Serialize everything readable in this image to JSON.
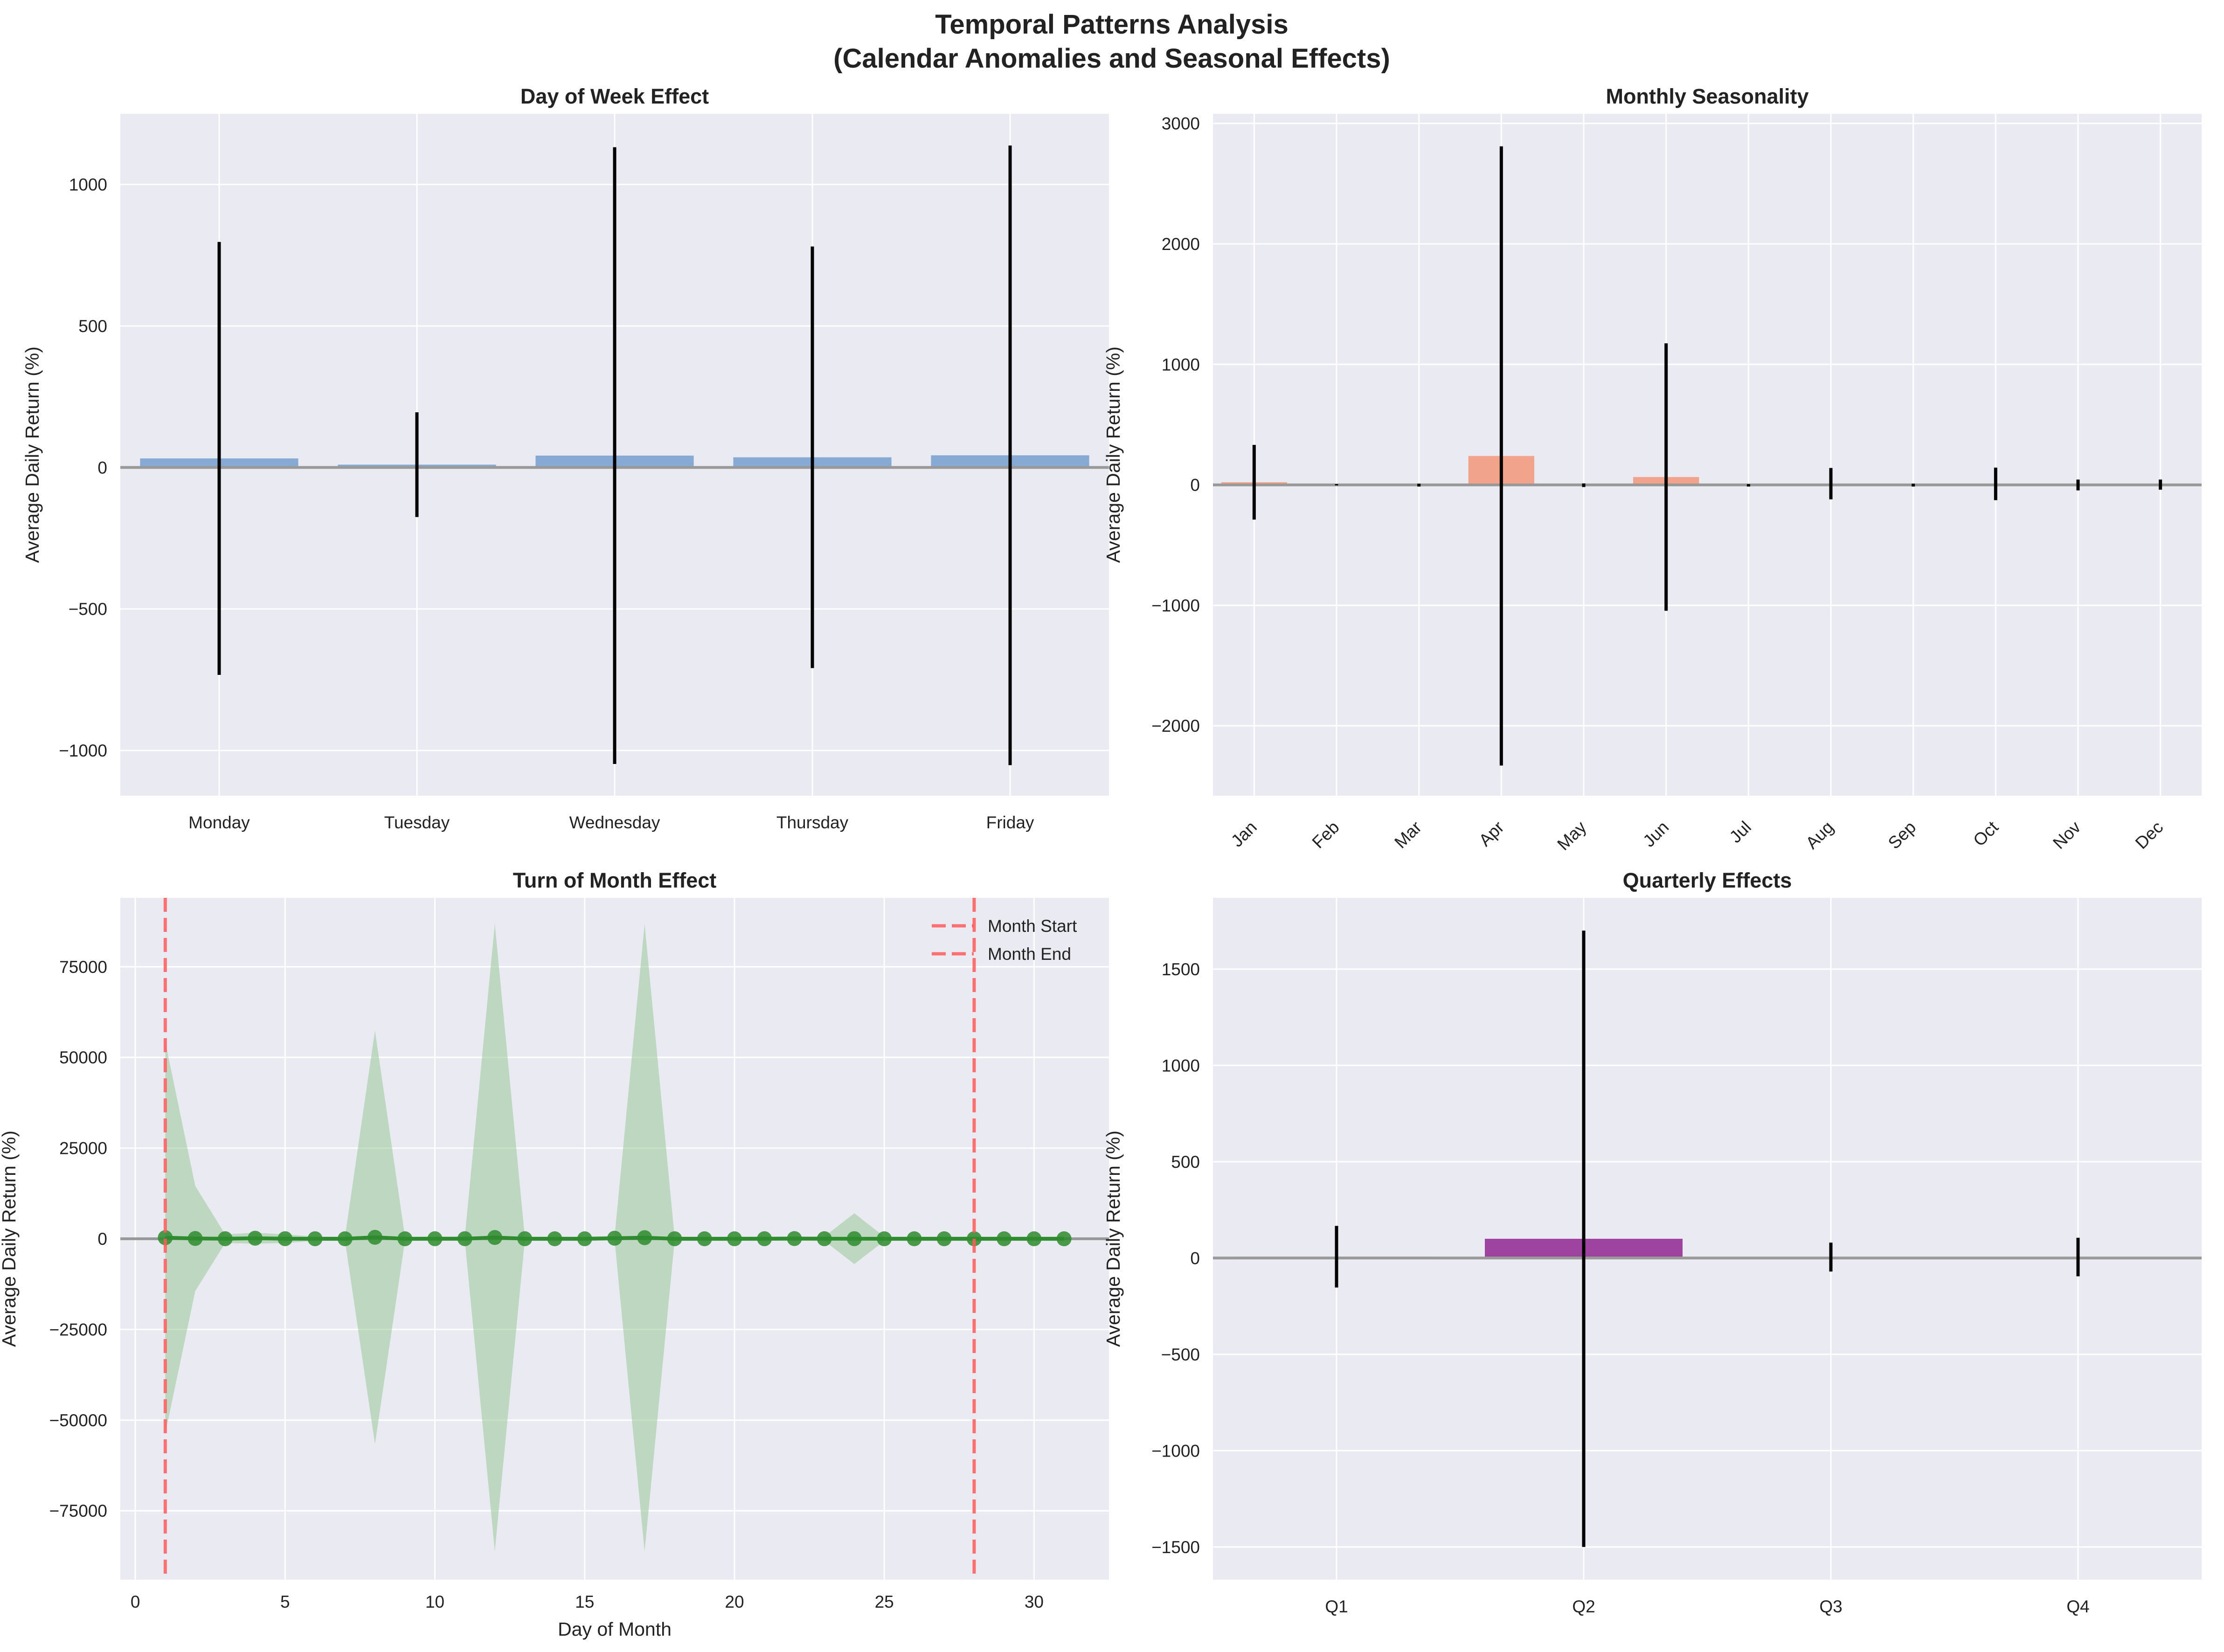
{
  "figure": {
    "title_line1": "Temporal Patterns Analysis",
    "title_line2": "(Calendar Anomalies and Seasonal Effects)"
  },
  "colors": {
    "axes_bg": "#eaeaf2",
    "grid": "#ffffff",
    "zero_line": "#999999",
    "errorbar": "#000000",
    "day_of_week_bar": "#5b8fc7",
    "monthly_bar": "#f4845f",
    "turn_of_month_line": "#2e8b2e",
    "turn_of_month_band": "#8fc48f",
    "month_marker": "#ff5a5a",
    "quarterly_bar": "#8b1a8b"
  },
  "chart_data": [
    {
      "id": "day_of_week",
      "type": "bar",
      "title": "Day of Week Effect",
      "xlabel": "",
      "ylabel": "Average Daily Return (%)",
      "categories": [
        "Monday",
        "Tuesday",
        "Wednesday",
        "Thursday",
        "Friday"
      ],
      "values": [
        32,
        10,
        42,
        36,
        43
      ],
      "error": [
        765,
        185,
        1090,
        745,
        1095
      ],
      "ylim": [
        -1160,
        1250
      ],
      "yticks": [
        -1000,
        -500,
        0,
        500,
        1000
      ],
      "grid": true
    },
    {
      "id": "monthly",
      "type": "bar",
      "title": "Monthly Seasonality",
      "xlabel": "",
      "ylabel": "Average Daily Return (%)",
      "categories": [
        "Jan",
        "Feb",
        "Mar",
        "Apr",
        "May",
        "Jun",
        "Jul",
        "Aug",
        "Sep",
        "Oct",
        "Nov",
        "Dec"
      ],
      "values": [
        22,
        1,
        -2,
        240,
        -3,
        65,
        -4,
        10,
        -2,
        8,
        -1,
        2
      ],
      "error": [
        310,
        5,
        12,
        2570,
        15,
        1110,
        10,
        130,
        12,
        135,
        45,
        42
      ],
      "ylim": [
        -2580,
        3080
      ],
      "yticks": [
        -2000,
        -1000,
        0,
        1000,
        2000,
        3000
      ],
      "grid": true
    },
    {
      "id": "turn_of_month",
      "type": "line",
      "title": "Turn of Month Effect",
      "xlabel": "Day of Month",
      "ylabel": "Average Daily Return (%)",
      "x": [
        1,
        2,
        3,
        4,
        5,
        6,
        7,
        8,
        9,
        10,
        11,
        12,
        13,
        14,
        15,
        16,
        17,
        18,
        19,
        20,
        21,
        22,
        23,
        24,
        25,
        26,
        27,
        28,
        29,
        30,
        31
      ],
      "values": [
        300,
        80,
        10,
        150,
        20,
        5,
        0,
        400,
        0,
        10,
        20,
        350,
        10,
        0,
        0,
        150,
        300,
        5,
        0,
        0,
        10,
        50,
        10,
        20,
        0,
        0,
        0,
        0,
        0,
        0,
        0
      ],
      "band": [
        54000,
        14500,
        1200,
        1500,
        1200,
        600,
        600,
        57000,
        600,
        600,
        600,
        86500,
        600,
        600,
        600,
        600,
        86500,
        600,
        600,
        600,
        600,
        600,
        600,
        7000,
        600,
        600,
        600,
        600,
        600,
        600,
        600
      ],
      "xlim": [
        -0.5,
        32.5
      ],
      "ylim": [
        -94000,
        94000
      ],
      "xticks": [
        0,
        5,
        10,
        15,
        20,
        25,
        30
      ],
      "yticks": [
        -75000,
        -50000,
        -25000,
        0,
        25000,
        50000,
        75000
      ],
      "vlines": [
        {
          "x": 1,
          "name": "Month Start"
        },
        {
          "x": 28,
          "name": "Month End"
        }
      ],
      "legend": "top-right",
      "grid": true
    },
    {
      "id": "quarterly",
      "type": "bar",
      "title": "Quarterly Effects",
      "xlabel": "",
      "ylabel": "Average Daily Return (%)",
      "categories": [
        "Q1",
        "Q2",
        "Q3",
        "Q4"
      ],
      "values": [
        7,
        100,
        5,
        5
      ],
      "error": [
        160,
        1600,
        75,
        100
      ],
      "ylim": [
        -1670,
        1870
      ],
      "yticks": [
        -1500,
        -1000,
        -500,
        0,
        500,
        1000,
        1500
      ],
      "grid": true
    }
  ]
}
